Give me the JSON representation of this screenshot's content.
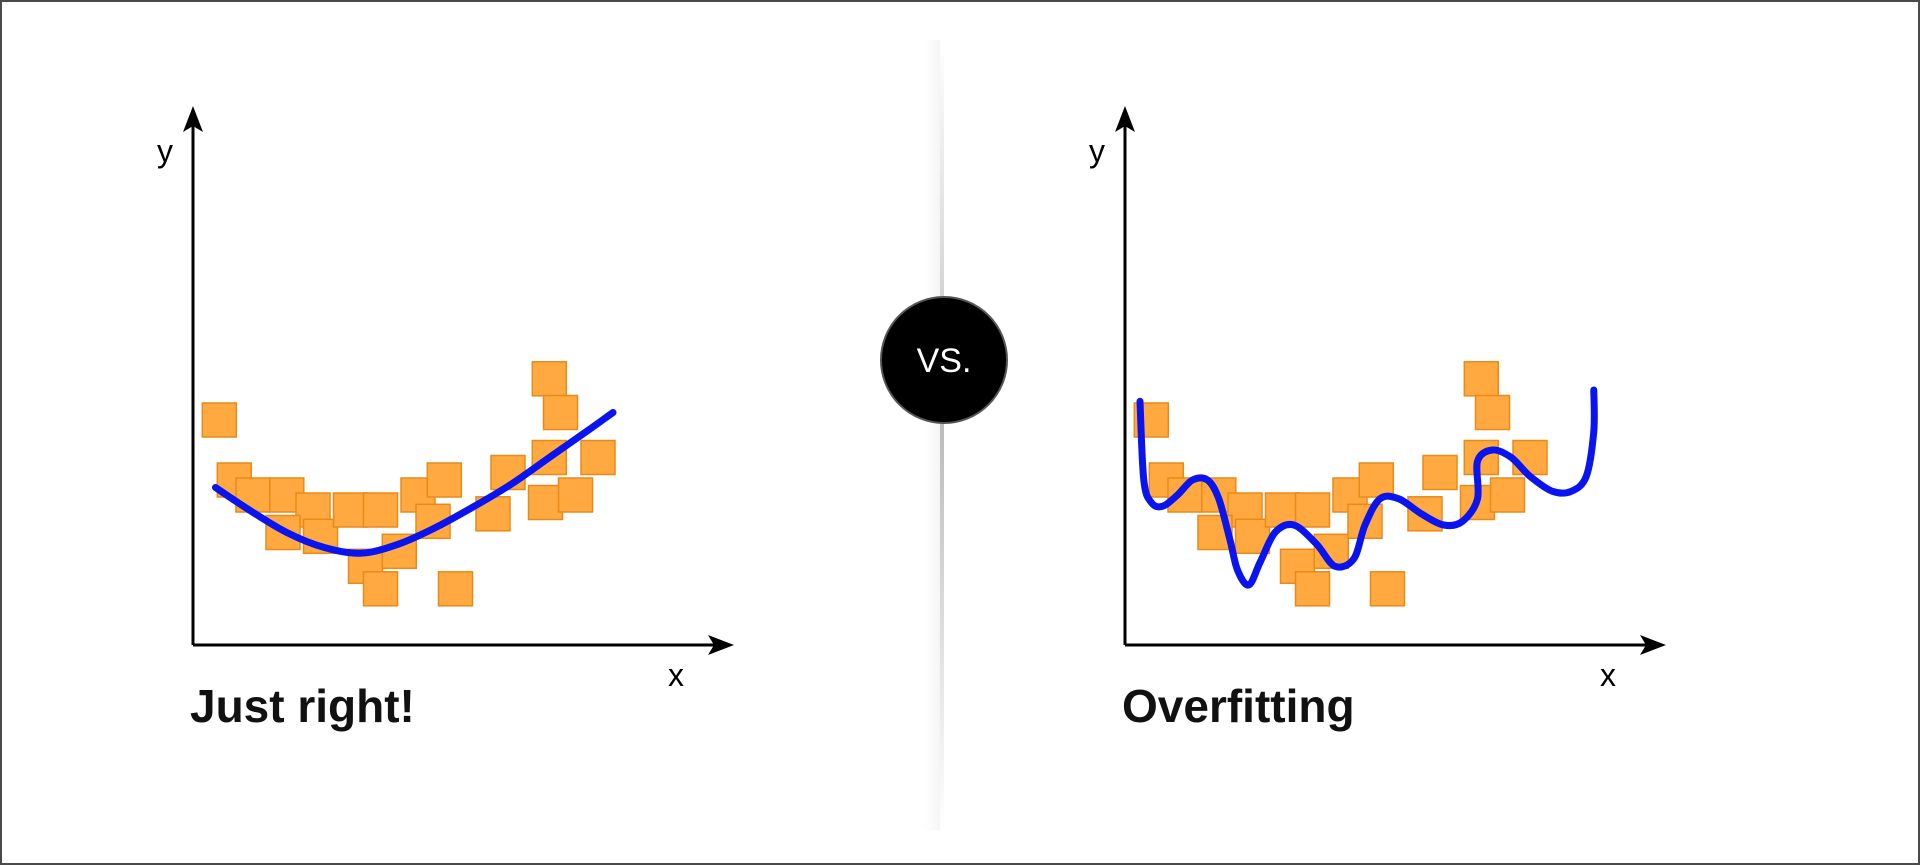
{
  "colors": {
    "point_fill": "#ffa940",
    "point_stroke": "#e88a1a",
    "curve": "#0a14ee",
    "divider": "#c8c8c8",
    "badge": "#000000"
  },
  "divider": {
    "badge_label": "VS."
  },
  "panels": [
    {
      "caption": "Just right!",
      "x_label": "x",
      "y_label": "y",
      "curve_kind": "smooth"
    },
    {
      "caption": "Overfitting",
      "x_label": "x",
      "y_label": "y",
      "curve_kind": "wiggly"
    }
  ],
  "chart_data": {
    "type": "scatter",
    "series": [
      {
        "values": [
          [
            0.7,
            6.0
          ],
          [
            1.1,
            4.4
          ],
          [
            1.6,
            4.0
          ],
          [
            2.5,
            4.0
          ],
          [
            3.2,
            3.6
          ],
          [
            3.4,
            2.9
          ],
          [
            4.2,
            3.6
          ],
          [
            4.6,
            2.1
          ],
          [
            5.0,
            3.6
          ],
          [
            5.0,
            1.5
          ],
          [
            5.5,
            2.5
          ],
          [
            6.0,
            4.0
          ],
          [
            6.4,
            3.3
          ],
          [
            6.7,
            4.4
          ],
          [
            7.0,
            1.5
          ],
          [
            8.0,
            3.5
          ],
          [
            8.4,
            4.6
          ],
          [
            9.4,
            3.8
          ],
          [
            9.5,
            5.0
          ],
          [
            9.5,
            7.1
          ],
          [
            9.8,
            6.2
          ],
          [
            10.2,
            4.0
          ],
          [
            10.8,
            5.0
          ],
          [
            2.4,
            3.0
          ]
        ]
      }
    ],
    "fits": [
      {
        "kind": "smooth",
        "points": [
          [
            0.6,
            4.2
          ],
          [
            1.5,
            3.6
          ],
          [
            2.5,
            3.0
          ],
          [
            3.5,
            2.6
          ],
          [
            4.5,
            2.45
          ],
          [
            5.5,
            2.7
          ],
          [
            6.5,
            3.15
          ],
          [
            7.5,
            3.7
          ],
          [
            8.5,
            4.3
          ],
          [
            9.5,
            5.0
          ],
          [
            10.5,
            5.7
          ],
          [
            11.2,
            6.2
          ]
        ]
      },
      {
        "kind": "wiggly",
        "points": [
          [
            0.4,
            6.5
          ],
          [
            0.5,
            4.4
          ],
          [
            0.7,
            3.8
          ],
          [
            1.0,
            3.7
          ],
          [
            1.4,
            4.0
          ],
          [
            1.8,
            4.4
          ],
          [
            2.2,
            4.4
          ],
          [
            2.5,
            3.9
          ],
          [
            2.8,
            2.8
          ],
          [
            3.0,
            2.0
          ],
          [
            3.3,
            1.6
          ],
          [
            3.6,
            2.2
          ],
          [
            4.0,
            3.0
          ],
          [
            4.5,
            3.2
          ],
          [
            5.1,
            2.7
          ],
          [
            5.6,
            2.1
          ],
          [
            6.1,
            2.3
          ],
          [
            6.4,
            3.2
          ],
          [
            6.8,
            3.9
          ],
          [
            7.3,
            3.9
          ],
          [
            7.9,
            3.5
          ],
          [
            8.5,
            3.2
          ],
          [
            9.0,
            3.3
          ],
          [
            9.4,
            3.9
          ],
          [
            9.4,
            4.9
          ],
          [
            9.8,
            5.2
          ],
          [
            10.3,
            5.0
          ],
          [
            10.8,
            4.5
          ],
          [
            11.4,
            4.1
          ],
          [
            11.9,
            4.1
          ],
          [
            12.3,
            4.5
          ],
          [
            12.5,
            5.7
          ],
          [
            12.5,
            6.8
          ]
        ]
      }
    ],
    "xlim": [
      0,
      14
    ],
    "ylim": [
      0,
      14
    ],
    "xlabel": "x",
    "ylabel": "y",
    "grid": false
  }
}
